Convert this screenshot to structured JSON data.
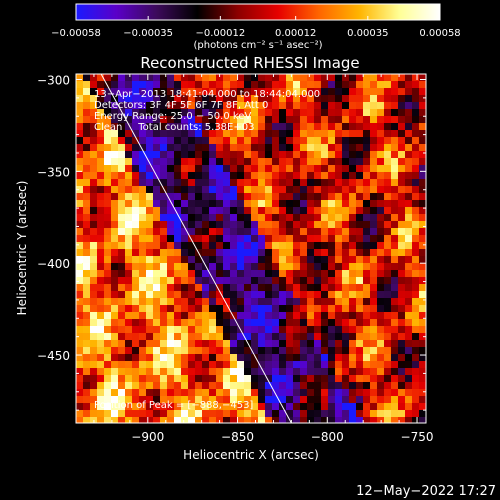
{
  "chart_data": {
    "type": "heatmap",
    "title": "Reconstructed RHESSI Image",
    "xlabel": "Heliocentric X (arcsec)",
    "ylabel": "Heliocentric Y (arcsec)",
    "xlim": [
      -940,
      -745
    ],
    "ylim": [
      -487,
      -297
    ],
    "x_ticks": [
      -900,
      -850,
      -800,
      -750
    ],
    "y_ticks": [
      -300,
      -350,
      -400,
      -450
    ],
    "x_tick_labels": [
      "−900",
      "−850",
      "−800",
      "−750"
    ],
    "y_tick_labels": [
      "−300",
      "−350",
      "−400",
      "−450"
    ],
    "colorbar": {
      "range": [
        -0.00058,
        0.00058
      ],
      "ticks": [
        -0.00058,
        -0.00035,
        -0.00012,
        0.00012,
        0.00035,
        0.00058
      ],
      "tick_labels": [
        "−0.00058",
        "−0.00035",
        "−0.00012",
        "0.00012",
        "0.00035",
        "0.00058"
      ],
      "unit_label": "(photons cm⁻² s⁻¹ asec⁻²)",
      "colors": [
        "#1a1aff",
        "#5a00c8",
        "#3c0a5a",
        "#000000",
        "#8c0000",
        "#e60000",
        "#ff6400",
        "#ffb400",
        "#ffff96",
        "#ffffff"
      ]
    },
    "annotations": [
      "13−Apr−2013 18:41:04.000 to 18:44:04.000",
      "Detectors: 3F 4F 5F 6F 7F 8F, Att 0",
      "Energy Range: 25.0 − 50.0 keV",
      "Clean     Total counts: 5.38E+03"
    ],
    "peak_label": "Position of Peak = [−888,−453]",
    "peak_position": [
      -888,
      -453
    ],
    "limb_line": [
      [
        -926,
        -297
      ],
      [
        -820,
        -487
      ]
    ],
    "grid": false
  },
  "footer": {
    "timestamp": "12−May−2022 17:27"
  }
}
